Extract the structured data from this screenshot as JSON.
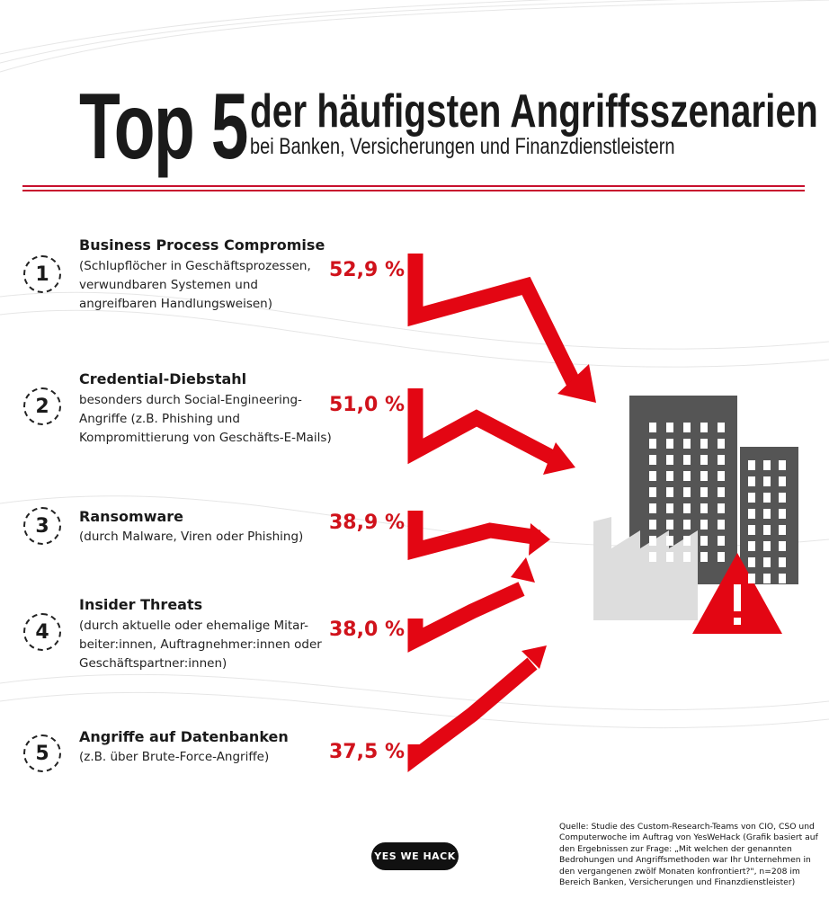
{
  "header": {
    "big": "Top 5",
    "title": "der häufigsten Angriffsszenarien",
    "subtitle": "bei Banken, Versicherungen und Finanzdienstleistern"
  },
  "items": [
    {
      "rank": "1",
      "title": "Business Process Compromise",
      "desc": "(Schlupflöcher in Geschäftsprozessen,\nverwundbaren Systemen und\nangreifbaren Handlungsweisen)",
      "percent": "52,9 %"
    },
    {
      "rank": "2",
      "title": "Credential-Diebstahl",
      "desc": "besonders durch Social-Engineering-\nAngriffe (z.B. Phishing und\nKompromittierung von Geschäfts-E-Mails)",
      "percent": "51,0 %"
    },
    {
      "rank": "3",
      "title": "Ransomware",
      "desc": "(durch Malware, Viren oder Phishing)",
      "percent": "38,9 %"
    },
    {
      "rank": "4",
      "title": "Insider Threats",
      "desc": "(durch aktuelle oder ehemalige Mitar-\nbeiter:innen, Auftragnehmer:innen oder\nGeschäftspartner:innen)",
      "percent": "38,0 %"
    },
    {
      "rank": "5",
      "title": "Angriffe auf Datenbanken",
      "desc": "(z.B. über Brute-Force-Angriffe)",
      "percent": "37,5 %"
    }
  ],
  "source": "Quelle: Studie des Custom-Research-Teams von CIO, CSO und Computerwoche im Auftrag von YesWeHack (Grafik basiert auf den Ergebnissen zur Frage: „Mit welchen der genannten Bedrohungen und Angriffsmethoden war Ihr Unternehmen in den vergangenen zwölf Monaten konfrontiert?\", n=208 im Bereich Banken, Versicherungen und Finanzdienstleister)",
  "logo": "YES WE HACK",
  "colors": {
    "accent": "#d0121b",
    "building": "#555555",
    "factory": "#dddddd"
  }
}
